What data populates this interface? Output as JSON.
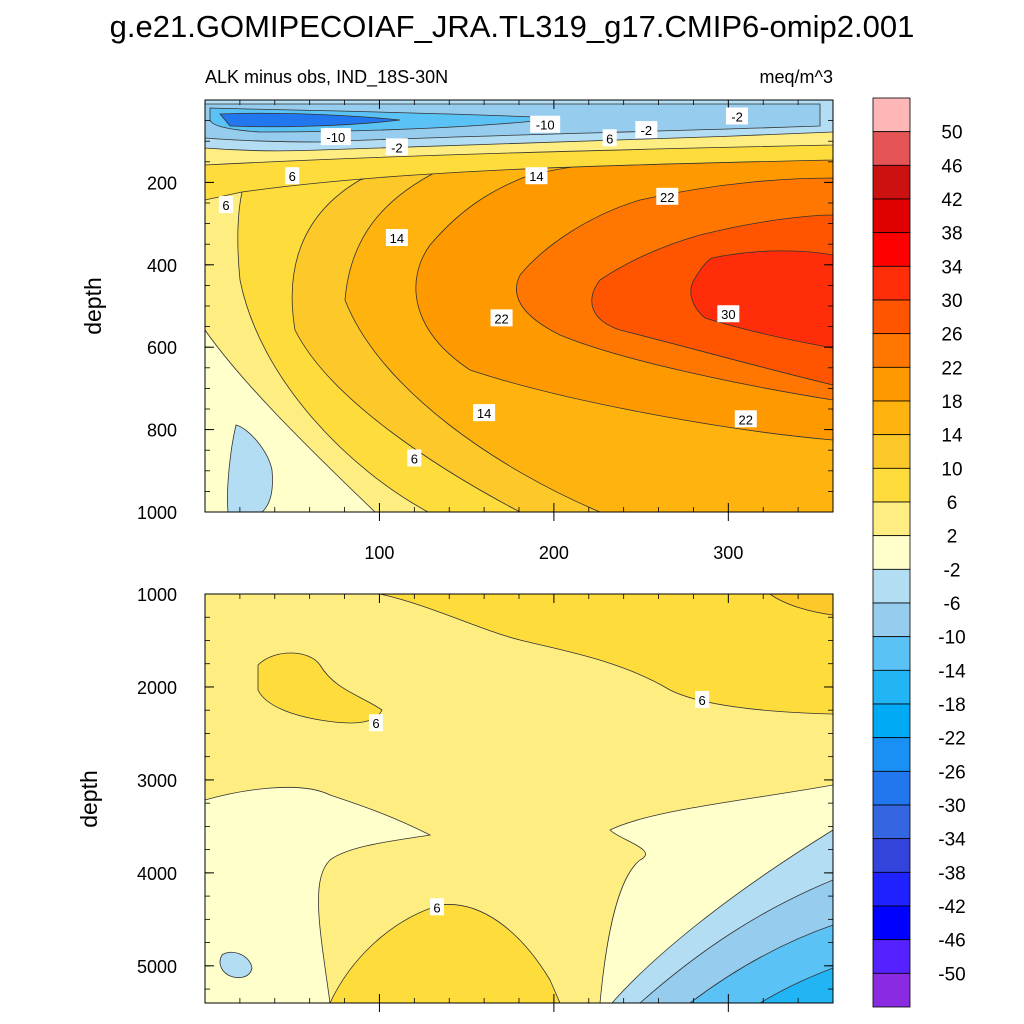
{
  "title": "g.e21.GOMIPECOIAF_JRA.TL319_g17.CMIP6-omip2.001",
  "chart_data": {
    "type": "contour",
    "subtitle_left": "ALK minus obs, IND_18S-30N",
    "subtitle_right": "meq/m^3",
    "xlabel": "",
    "ylabel": "depth",
    "xlim": [
      0,
      360
    ],
    "x_ticks": [
      100,
      200,
      300
    ],
    "top_panel": {
      "ylim": [
        1000,
        0
      ],
      "y_ticks": [
        200,
        400,
        600,
        800,
        1000
      ]
    },
    "bottom_panel": {
      "ylim": [
        5400,
        1000
      ],
      "y_ticks": [
        1000,
        2000,
        3000,
        4000,
        5000
      ]
    },
    "colorbar": {
      "labels": [
        "50",
        "46",
        "42",
        "38",
        "34",
        "30",
        "26",
        "22",
        "18",
        "14",
        "10",
        "6",
        "2",
        "-2",
        "-6",
        "-10",
        "-14",
        "-18",
        "-22",
        "-26",
        "-30",
        "-34",
        "-38",
        "-42",
        "-46",
        "-50"
      ],
      "colors": [
        "#FFB6B6",
        "#E55555",
        "#CC1111",
        "#E00000",
        "#FF0000",
        "#FF2D0A",
        "#FF5500",
        "#FF7700",
        "#FF9900",
        "#FFB30F",
        "#FCC82A",
        "#FDDC3C",
        "#FEEE82",
        "#FFFFCC",
        "#B3DDF2",
        "#96CCEE",
        "#5BC2F5",
        "#22B5F5",
        "#00AAF5",
        "#1A90F5",
        "#2277EE",
        "#3366E0",
        "#3344DD",
        "#1F22FF",
        "#0000FF",
        "#5522FF",
        "#8A2BE2"
      ]
    },
    "contour_labels_top": [
      {
        "text": "-10",
        "x": 75,
        "y": 90
      },
      {
        "text": "-2",
        "x": 110,
        "y": 115
      },
      {
        "text": "-10",
        "x": 195,
        "y": 60
      },
      {
        "text": "6",
        "x": 232,
        "y": 93
      },
      {
        "text": "-2",
        "x": 253,
        "y": 73
      },
      {
        "text": "-2",
        "x": 305,
        "y": 40
      },
      {
        "text": "6",
        "x": 50,
        "y": 185
      },
      {
        "text": "6",
        "x": 12,
        "y": 255
      },
      {
        "text": "14",
        "x": 190,
        "y": 185
      },
      {
        "text": "14",
        "x": 110,
        "y": 335
      },
      {
        "text": "22",
        "x": 265,
        "y": 235
      },
      {
        "text": "22",
        "x": 170,
        "y": 530
      },
      {
        "text": "30",
        "x": 300,
        "y": 520
      },
      {
        "text": "14",
        "x": 160,
        "y": 760
      },
      {
        "text": "22",
        "x": 310,
        "y": 775
      },
      {
        "text": "6",
        "x": 120,
        "y": 870
      }
    ],
    "contour_labels_bottom": [
      {
        "text": "6",
        "x": 98,
        "y": 2390
      },
      {
        "text": "6",
        "x": 285,
        "y": 2140
      },
      {
        "text": "6",
        "x": 133,
        "y": 4370
      }
    ]
  }
}
